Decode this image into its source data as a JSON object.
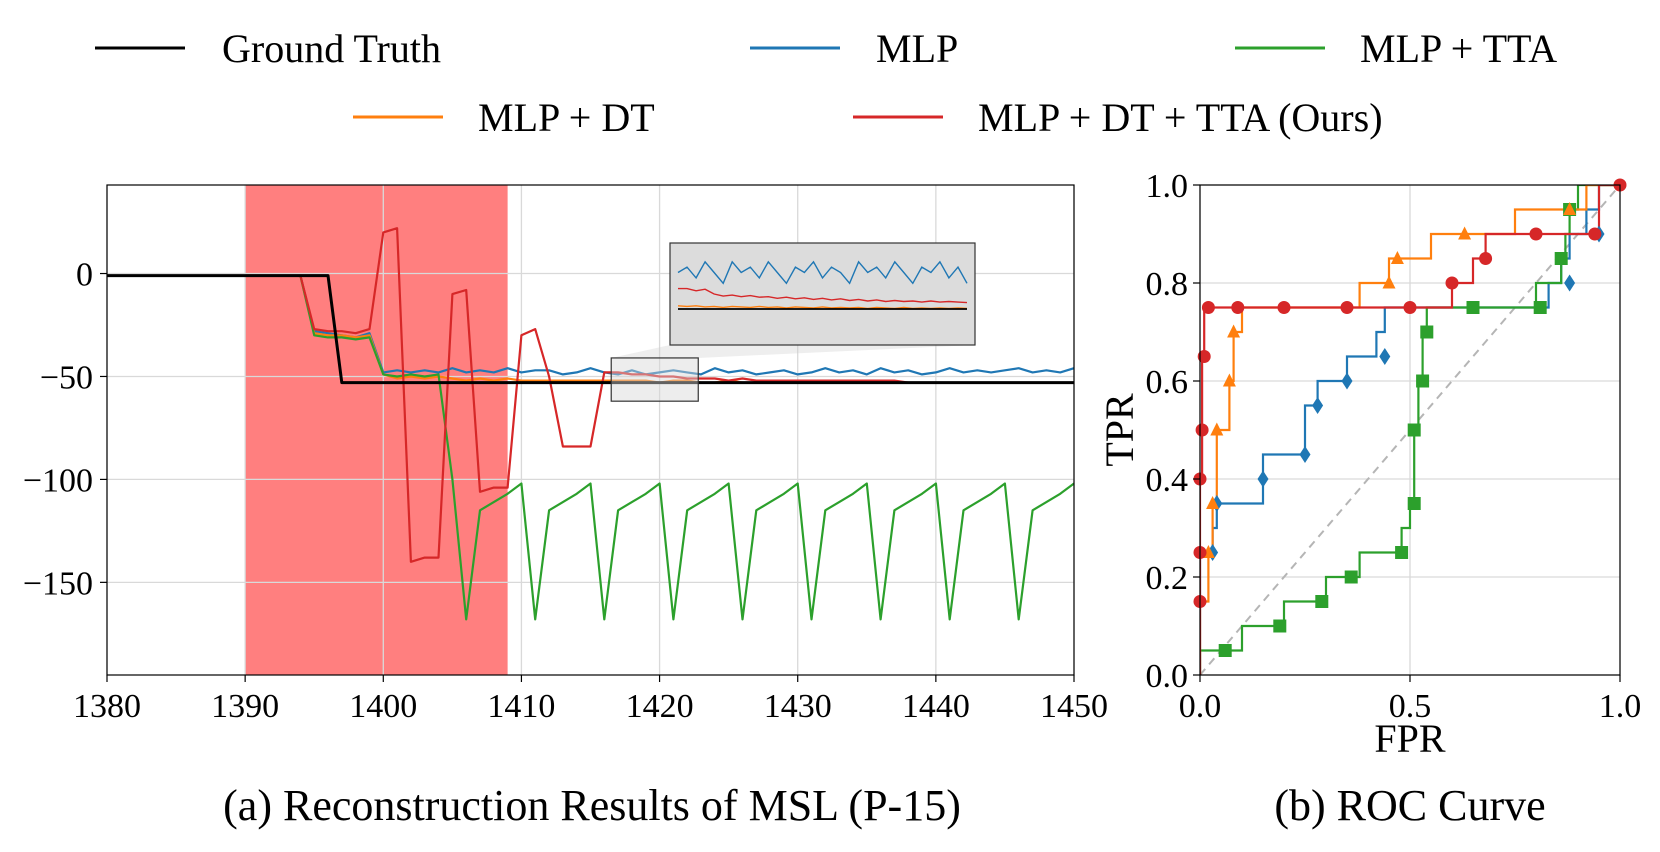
{
  "legend": {
    "items": [
      {
        "label": "Ground Truth",
        "color": "#000000"
      },
      {
        "label": "MLP",
        "color": "#1f77b4"
      },
      {
        "label": "MLP + TTA",
        "color": "#2ca02c"
      },
      {
        "label": "MLP + DT",
        "color": "#ff7f0e"
      },
      {
        "label": "MLP + DT + TTA (Ours)",
        "color": "#d62728"
      }
    ]
  },
  "captions": {
    "a": "(a) Reconstruction Results of MSL (P-15)",
    "b": "(b) ROC Curve"
  },
  "chart_data": [
    {
      "type": "line",
      "xlim": [
        1380,
        1450
      ],
      "ylim": [
        -195,
        43
      ],
      "xticks": [
        "1380",
        "1390",
        "1400",
        "1410",
        "1420",
        "1430",
        "1440",
        "1450"
      ],
      "yticks": [
        "0",
        "−50",
        "−100",
        "−150"
      ],
      "xtick_values": [
        1380,
        1390,
        1400,
        1410,
        1420,
        1430,
        1440,
        1450
      ],
      "ytick_values": [
        0,
        -50,
        -100,
        -150
      ],
      "grid": true,
      "anomaly_region": [
        1390,
        1409
      ],
      "anomaly_color": "#ff7f7f",
      "inset_region": {
        "x": [
          1416.5,
          1422.8
        ],
        "y": [
          -62,
          -41
        ]
      },
      "series": [
        {
          "name": "Ground Truth",
          "color": "#000000",
          "x": [
            1380,
            1394,
            1396,
            1397,
            1450
          ],
          "y": [
            -1,
            -1,
            -1,
            -53,
            -53
          ]
        },
        {
          "name": "MLP",
          "color": "#1f77b4",
          "x": [
            1380,
            1394,
            1395,
            1396,
            1397,
            1398,
            1399,
            1400,
            1401,
            1402,
            1403,
            1404,
            1405,
            1406,
            1407,
            1408,
            1409,
            1410,
            1411,
            1412,
            1413,
            1414,
            1415,
            1416,
            1417,
            1418,
            1419,
            1420,
            1421,
            1422,
            1423,
            1424,
            1425,
            1426,
            1427,
            1428,
            1429,
            1430,
            1431,
            1432,
            1433,
            1434,
            1435,
            1436,
            1437,
            1438,
            1439,
            1440,
            1441,
            1442,
            1443,
            1444,
            1445,
            1446,
            1447,
            1448,
            1449,
            1450
          ],
          "y": [
            -1,
            -1,
            -28,
            -29,
            -30,
            -31,
            -29,
            -48,
            -47,
            -48,
            -47,
            -48,
            -46,
            -48,
            -47,
            -48,
            -46,
            -48,
            -47,
            -47,
            -49,
            -48,
            -46,
            -48,
            -49,
            -47,
            -49,
            -48,
            -47,
            -48,
            -49,
            -46,
            -48,
            -47,
            -49,
            -48,
            -47,
            -49,
            -48,
            -46,
            -48,
            -47,
            -49,
            -46,
            -48,
            -47,
            -49,
            -48,
            -46,
            -48,
            -47,
            -48,
            -47,
            -46,
            -48,
            -47,
            -48,
            -46
          ]
        },
        {
          "name": "MLP + TTA",
          "color": "#2ca02c",
          "x": [
            1380,
            1394,
            1395,
            1396,
            1397,
            1398,
            1399,
            1400,
            1401,
            1402,
            1403,
            1404,
            1405,
            1406,
            1407,
            1408,
            1409,
            1410,
            1411,
            1412,
            1413,
            1414,
            1415,
            1416,
            1417,
            1418,
            1419,
            1420,
            1421,
            1422,
            1423,
            1424,
            1425,
            1426,
            1427,
            1428,
            1429,
            1430,
            1431,
            1432,
            1433,
            1434,
            1435,
            1436,
            1437,
            1438,
            1439,
            1440,
            1441,
            1442,
            1443,
            1444,
            1445,
            1446,
            1447,
            1448,
            1449,
            1450
          ],
          "y": [
            -1,
            -1,
            -30,
            -31,
            -31,
            -32,
            -31,
            -49,
            -50,
            -49,
            -50,
            -49,
            -100,
            -168,
            -115,
            -111,
            -107,
            -102,
            -168,
            -115,
            -111,
            -107,
            -102,
            -168,
            -115,
            -111,
            -107,
            -102,
            -168,
            -115,
            -111,
            -107,
            -102,
            -168,
            -115,
            -111,
            -107,
            -102,
            -168,
            -115,
            -111,
            -107,
            -102,
            -168,
            -115,
            -111,
            -107,
            -102,
            -168,
            -115,
            -111,
            -107,
            -102,
            -168,
            -115,
            -111,
            -107,
            -102
          ]
        },
        {
          "name": "MLP + DT",
          "color": "#ff7f0e",
          "x": [
            1380,
            1394,
            1395,
            1396,
            1397,
            1398,
            1399,
            1400,
            1401,
            1402,
            1403,
            1404,
            1405,
            1406,
            1407,
            1408,
            1409,
            1410,
            1411,
            1412,
            1413,
            1414,
            1415,
            1416,
            1417,
            1418,
            1419,
            1420,
            1421,
            1422,
            1423,
            1424,
            1425,
            1426,
            1427,
            1428,
            1429,
            1430,
            1431,
            1432,
            1433,
            1434,
            1435,
            1436,
            1437,
            1438,
            1439,
            1440,
            1441,
            1442,
            1443,
            1444,
            1445,
            1446,
            1447,
            1448,
            1449,
            1450
          ],
          "y": [
            -1,
            -1,
            -29,
            -30,
            -30,
            -31,
            -30,
            -49,
            -51,
            -50,
            -51,
            -50,
            -51,
            -52,
            -51,
            -52,
            -51,
            -52,
            -52,
            -52,
            -52,
            -52,
            -52,
            -52,
            -52,
            -52,
            -52,
            -53,
            -52,
            -52,
            -53,
            -53,
            -52,
            -53,
            -53,
            -52,
            -53,
            -53,
            -52,
            -53,
            -53,
            -52,
            -53,
            -53,
            -53,
            -53,
            -53,
            -53,
            -53,
            -53,
            -53,
            -53,
            -53,
            -53,
            -53,
            -53,
            -53,
            -53
          ]
        },
        {
          "name": "MLP + DT + TTA (Ours)",
          "color": "#d62728",
          "x": [
            1380,
            1394,
            1395,
            1396,
            1397,
            1398,
            1399,
            1400,
            1401,
            1402,
            1403,
            1404,
            1405,
            1406,
            1407,
            1408,
            1409,
            1410,
            1411,
            1412,
            1413,
            1414,
            1415,
            1416,
            1417,
            1418,
            1419,
            1420,
            1421,
            1422,
            1423,
            1424,
            1425,
            1426,
            1427,
            1428,
            1429,
            1430,
            1431,
            1432,
            1433,
            1434,
            1435,
            1436,
            1437,
            1438,
            1439,
            1440,
            1441,
            1442,
            1443,
            1444,
            1445,
            1446,
            1447,
            1448,
            1449,
            1450
          ],
          "y": [
            -1,
            -1,
            -27,
            -28,
            -28,
            -29,
            -27,
            20,
            22,
            -140,
            -138,
            -138,
            -10,
            -8,
            -106,
            -104,
            -104,
            -30,
            -27,
            -50,
            -84,
            -84,
            -84,
            -48,
            -48,
            -49,
            -49,
            -50,
            -50,
            -51,
            -51,
            -51,
            -52,
            -51,
            -52,
            -52,
            -52,
            -52,
            -52,
            -52,
            -52,
            -52,
            -52,
            -52,
            -52,
            -53,
            -53,
            -53,
            -53,
            -53,
            -53,
            -53,
            -53,
            -53,
            -53,
            -53,
            -53,
            -53
          ]
        }
      ]
    },
    {
      "type": "line",
      "xlabel": "FPR",
      "ylabel": "TPR",
      "xlim": [
        0.0,
        1.0
      ],
      "ylim": [
        0.0,
        1.0
      ],
      "xticks": [
        "0.0",
        "0.5",
        "1.0"
      ],
      "yticks": [
        "0.0",
        "0.2",
        "0.4",
        "0.6",
        "0.8",
        "1.0"
      ],
      "xtick_values": [
        0.0,
        0.5,
        1.0
      ],
      "ytick_values": [
        0.0,
        0.2,
        0.4,
        0.6,
        0.8,
        1.0
      ],
      "grid": true,
      "diagonal_reference": true,
      "series": [
        {
          "name": "MLP",
          "color": "#1f77b4",
          "marker": "diamond",
          "x": [
            0.0,
            0.0,
            0.03,
            0.03,
            0.04,
            0.04,
            0.15,
            0.15,
            0.25,
            0.25,
            0.28,
            0.28,
            0.35,
            0.35,
            0.42,
            0.42,
            0.44,
            0.44,
            0.45,
            0.45,
            0.83,
            0.83,
            0.86,
            0.86,
            0.88,
            0.88,
            0.92,
            0.92,
            0.95,
            0.95,
            1.0
          ],
          "y": [
            0.0,
            0.25,
            0.25,
            0.3,
            0.3,
            0.35,
            0.35,
            0.45,
            0.45,
            0.55,
            0.55,
            0.6,
            0.6,
            0.65,
            0.65,
            0.7,
            0.7,
            0.75,
            0.75,
            0.75,
            0.75,
            0.8,
            0.8,
            0.85,
            0.85,
            0.9,
            0.9,
            0.95,
            0.95,
            1.0,
            1.0
          ],
          "markers_x": [
            0.03,
            0.04,
            0.15,
            0.25,
            0.28,
            0.35,
            0.44,
            0.88,
            0.95
          ],
          "markers_y": [
            0.25,
            0.35,
            0.4,
            0.45,
            0.55,
            0.6,
            0.65,
            0.8,
            0.9
          ]
        },
        {
          "name": "MLP + TTA",
          "color": "#2ca02c",
          "marker": "square",
          "x": [
            0.0,
            0.0,
            0.02,
            0.02,
            0.1,
            0.1,
            0.2,
            0.2,
            0.3,
            0.3,
            0.38,
            0.38,
            0.48,
            0.48,
            0.5,
            0.5,
            0.51,
            0.51,
            0.52,
            0.52,
            0.53,
            0.53,
            0.54,
            0.54,
            0.65,
            0.65,
            0.8,
            0.8,
            0.86,
            0.86,
            0.87,
            0.87,
            0.88,
            0.88,
            0.9,
            0.9,
            1.0
          ],
          "y": [
            0.0,
            0.05,
            0.05,
            0.05,
            0.05,
            0.1,
            0.1,
            0.15,
            0.15,
            0.2,
            0.2,
            0.25,
            0.25,
            0.3,
            0.3,
            0.35,
            0.35,
            0.5,
            0.5,
            0.6,
            0.6,
            0.7,
            0.7,
            0.75,
            0.75,
            0.75,
            0.75,
            0.8,
            0.8,
            0.85,
            0.85,
            0.9,
            0.9,
            0.95,
            0.95,
            1.0,
            1.0
          ],
          "markers_x": [
            0.06,
            0.19,
            0.29,
            0.36,
            0.48,
            0.51,
            0.51,
            0.53,
            0.54,
            0.65,
            0.81,
            0.86,
            0.88
          ],
          "markers_y": [
            0.05,
            0.1,
            0.15,
            0.2,
            0.25,
            0.35,
            0.5,
            0.6,
            0.7,
            0.75,
            0.75,
            0.85,
            0.95
          ]
        },
        {
          "name": "MLP + DT",
          "color": "#ff7f0e",
          "marker": "triangle",
          "x": [
            0.0,
            0.0,
            0.02,
            0.02,
            0.03,
            0.03,
            0.04,
            0.04,
            0.07,
            0.07,
            0.08,
            0.08,
            0.1,
            0.1,
            0.38,
            0.38,
            0.45,
            0.45,
            0.47,
            0.47,
            0.55,
            0.55,
            0.58,
            0.58,
            0.75,
            0.75,
            0.85,
            0.85,
            0.92,
            0.92,
            1.0
          ],
          "y": [
            0.0,
            0.15,
            0.15,
            0.25,
            0.25,
            0.35,
            0.35,
            0.5,
            0.5,
            0.6,
            0.6,
            0.7,
            0.7,
            0.75,
            0.75,
            0.8,
            0.8,
            0.85,
            0.85,
            0.85,
            0.85,
            0.9,
            0.9,
            0.9,
            0.9,
            0.95,
            0.95,
            0.95,
            0.95,
            1.0,
            1.0
          ],
          "markers_x": [
            0.02,
            0.03,
            0.04,
            0.07,
            0.08,
            0.45,
            0.47,
            0.63,
            0.88
          ],
          "markers_y": [
            0.25,
            0.35,
            0.5,
            0.6,
            0.7,
            0.8,
            0.85,
            0.9,
            0.95
          ]
        },
        {
          "name": "MLP + DT + TTA (Ours)",
          "color": "#d62728",
          "marker": "circle",
          "x": [
            0.0,
            0.0,
            0.005,
            0.005,
            0.01,
            0.01,
            0.5,
            0.5,
            0.6,
            0.6,
            0.65,
            0.65,
            0.68,
            0.68,
            0.95,
            0.95,
            1.0
          ],
          "y": [
            0.0,
            0.4,
            0.4,
            0.65,
            0.65,
            0.75,
            0.75,
            0.75,
            0.75,
            0.8,
            0.8,
            0.85,
            0.85,
            0.9,
            0.9,
            1.0,
            1.0
          ],
          "markers_x": [
            0.0,
            0.0,
            0.0,
            0.005,
            0.01,
            0.02,
            0.09,
            0.2,
            0.35,
            0.5,
            0.6,
            0.68,
            0.8,
            0.94,
            1.0
          ],
          "markers_y": [
            0.15,
            0.25,
            0.4,
            0.5,
            0.65,
            0.75,
            0.75,
            0.75,
            0.75,
            0.75,
            0.8,
            0.85,
            0.9,
            0.9,
            1.0
          ]
        }
      ]
    }
  ]
}
